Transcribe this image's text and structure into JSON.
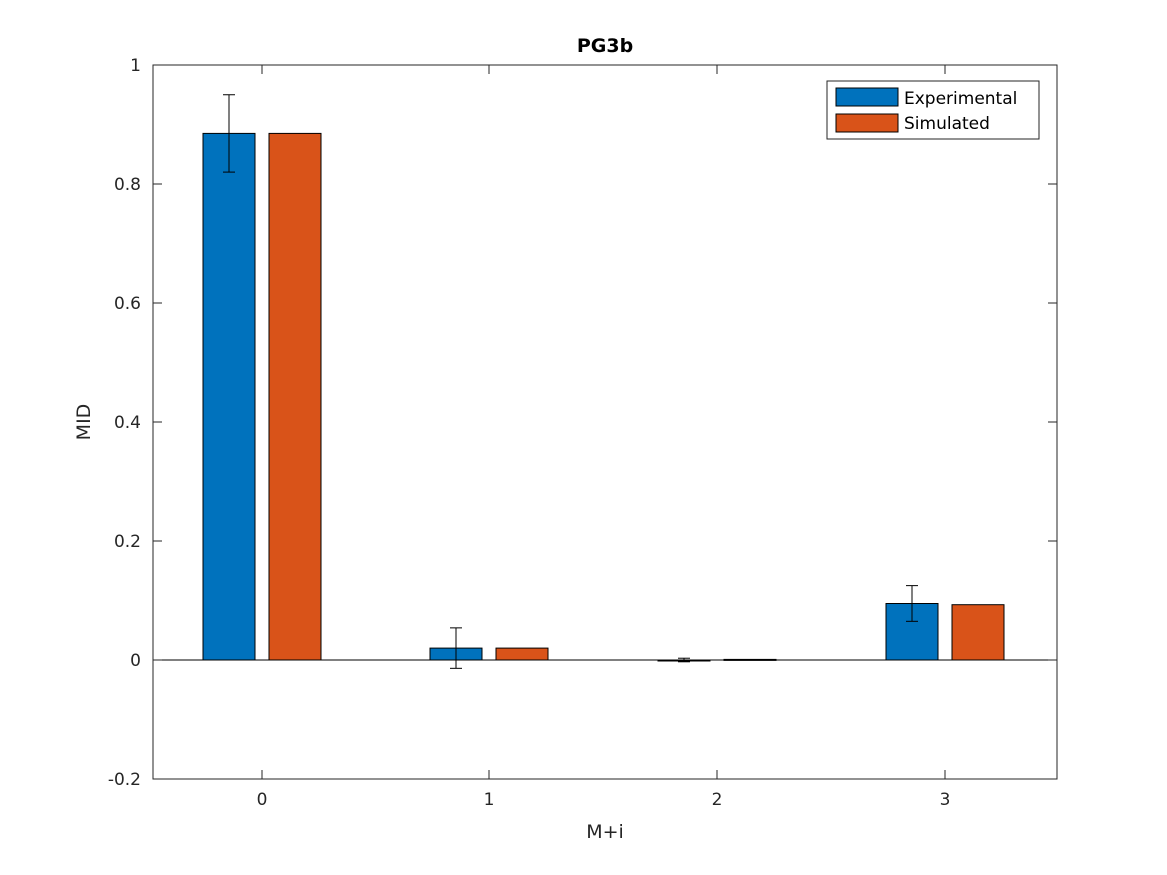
{
  "chart_data": {
    "type": "bar",
    "title": "PG3b",
    "xlabel": "M+i",
    "ylabel": "MID",
    "categories": [
      "0",
      "1",
      "2",
      "3"
    ],
    "ylim": [
      -0.2,
      1
    ],
    "yticks": [
      "-0.2",
      "0",
      "0.2",
      "0.4",
      "0.6",
      "0.8",
      "1"
    ],
    "grid": false,
    "legend_position": "top-right",
    "series": [
      {
        "name": "Experimental",
        "color": "#0072BD",
        "values": [
          0.885,
          0.02,
          0.0,
          0.095
        ],
        "errors": [
          0.065,
          0.034,
          0.003,
          0.03
        ]
      },
      {
        "name": "Simulated",
        "color": "#D95319",
        "values": [
          0.885,
          0.02,
          0.001,
          0.093
        ],
        "errors": [
          0.0,
          0.0,
          0.0,
          0.0
        ]
      }
    ]
  }
}
